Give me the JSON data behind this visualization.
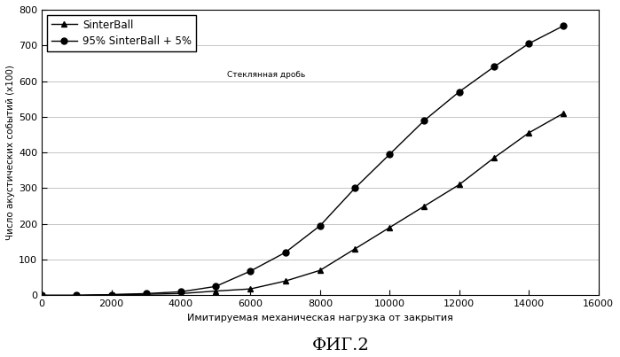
{
  "sinterball_x": [
    0,
    1000,
    2000,
    3000,
    4000,
    5000,
    6000,
    7000,
    8000,
    9000,
    10000,
    11000,
    12000,
    13000,
    14000,
    15000
  ],
  "sinterball_y": [
    0,
    0,
    2,
    3,
    5,
    12,
    18,
    40,
    70,
    130,
    190,
    250,
    310,
    385,
    455,
    510
  ],
  "mix_x": [
    0,
    1000,
    2000,
    3000,
    4000,
    5000,
    6000,
    7000,
    8000,
    9000,
    10000,
    11000,
    12000,
    13000,
    14000,
    15000
  ],
  "mix_y": [
    0,
    0,
    2,
    5,
    10,
    25,
    68,
    120,
    195,
    300,
    395,
    490,
    570,
    640,
    705,
    755
  ],
  "xlabel": "Имитируемая механическая нагрузка от закрытия",
  "ylabel": "Число акустических событий (х1оо)",
  "title": "ФИГ.2",
  "legend1": "SinterBall",
  "legend2_main": "95% SinterBall + 5%",
  "legend2_small": "Стеклянная дробь",
  "xlim": [
    0,
    16000
  ],
  "ylim": [
    0,
    800
  ],
  "xticks": [
    0,
    2000,
    4000,
    6000,
    8000,
    10000,
    12000,
    14000,
    16000
  ],
  "yticks": [
    0,
    100,
    200,
    300,
    400,
    500,
    600,
    700,
    800
  ],
  "background_color": "#ffffff",
  "line_color": "#000000",
  "grid_color": "#bbbbbb"
}
